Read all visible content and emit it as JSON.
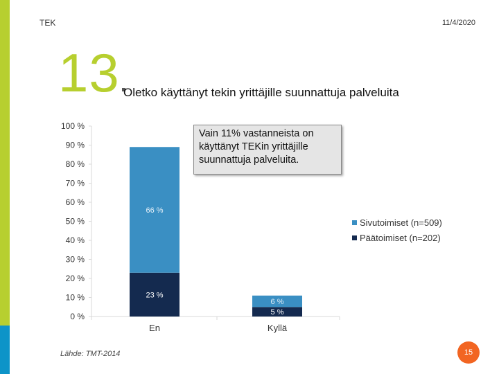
{
  "header": {
    "brand": "TEK",
    "date": "11/4/2020"
  },
  "slide": {
    "number": "13",
    "question": "Oletko käyttänyt tekin yrittäjille suunnattuja palveluita"
  },
  "callout": {
    "line1": "Vain 11% vastanneista on",
    "line2": "käyttänyt TEKin yrittäjille",
    "line3": "suunnattuja palveluita."
  },
  "source": "Lähde: TMT-2014",
  "page_number": "15",
  "colors": {
    "accent": "#b7cf2f",
    "accent_bottom": "#0d94c8",
    "sivutoimiset": "#3a8fc3",
    "paatoimiset": "#142a4f",
    "badge": "#f26522"
  },
  "chart_data": {
    "type": "bar",
    "stacked": true,
    "categories": [
      "En",
      "Kyllä"
    ],
    "series": [
      {
        "name": "Päätoimiset (n=202)",
        "values": [
          23,
          5
        ],
        "labels": [
          "23 %",
          "5 %"
        ]
      },
      {
        "name": "Sivutoimiset (n=509)",
        "values": [
          66,
          6
        ],
        "labels": [
          "66 %",
          "6 %"
        ]
      }
    ],
    "ylim": [
      0,
      100
    ],
    "yticks": [
      "0 %",
      "10 %",
      "20 %",
      "30 %",
      "40 %",
      "50 %",
      "60 %",
      "70 %",
      "80 %",
      "90 %",
      "100 %"
    ],
    "legend": [
      "Sivutoimiset (n=509)",
      "Päätoimiset (n=202)"
    ],
    "legend_position": "right",
    "grid": false
  }
}
